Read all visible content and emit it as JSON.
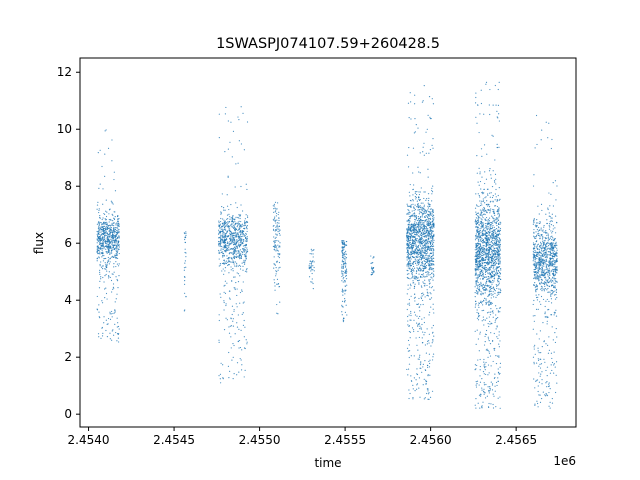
{
  "chart_data": {
    "type": "scatter",
    "title": "1SWASPJ074107.59+260428.5",
    "xlabel": "time",
    "ylabel": "flux",
    "x_offset_label": "1e6",
    "xlim": [
      2.45395,
      2.45685
    ],
    "ylim": [
      -0.45,
      12.5
    ],
    "x_ticks": [
      2.454,
      2.4545,
      2.455,
      2.4555,
      2.456,
      2.4565
    ],
    "x_tick_labels": [
      "2.4540",
      "2.4545",
      "2.4550",
      "2.4555",
      "2.4560",
      "2.4565"
    ],
    "y_ticks": [
      0,
      2,
      4,
      6,
      8,
      10,
      12
    ],
    "y_tick_labels": [
      "0",
      "2",
      "4",
      "6",
      "8",
      "10",
      "12"
    ],
    "grid": false,
    "marker_color": "#1f77b4",
    "series": [
      {
        "clusters": [
          {
            "x": [
              2.45405,
              2.45418
            ],
            "center": 6.2,
            "spread": 0.45,
            "low": 2.5,
            "high": 10.0,
            "n": 700
          },
          {
            "x": [
              2.45456,
              2.45457
            ],
            "center": 5.5,
            "spread": 0.7,
            "low": 3.4,
            "high": 6.4,
            "n": 30
          },
          {
            "x": [
              2.45476,
              2.45493
            ],
            "center": 6.1,
            "spread": 0.5,
            "low": 1.1,
            "high": 10.8,
            "n": 800
          },
          {
            "x": [
              2.45508,
              2.45512
            ],
            "center": 6.2,
            "spread": 0.8,
            "low": 3.5,
            "high": 7.5,
            "n": 120
          },
          {
            "x": [
              2.45529,
              2.45532
            ],
            "center": 5.2,
            "spread": 0.4,
            "low": 4.4,
            "high": 5.8,
            "n": 40
          },
          {
            "x": [
              2.45548,
              2.45551
            ],
            "center": 5.3,
            "spread": 0.7,
            "low": 2.9,
            "high": 6.1,
            "n": 140
          },
          {
            "x": [
              2.45565,
              2.45567
            ],
            "center": 5.2,
            "spread": 0.3,
            "low": 4.7,
            "high": 5.6,
            "n": 25
          },
          {
            "x": [
              2.45586,
              2.45602
            ],
            "center": 6.1,
            "spread": 0.75,
            "low": 0.5,
            "high": 11.6,
            "n": 1400
          },
          {
            "x": [
              2.45626,
              2.45641
            ],
            "center": 5.8,
            "spread": 0.9,
            "low": 0.2,
            "high": 11.9,
            "n": 1500
          },
          {
            "x": [
              2.4566,
              2.45674
            ],
            "center": 5.4,
            "spread": 0.7,
            "low": 0.2,
            "high": 10.5,
            "n": 900
          }
        ]
      }
    ]
  }
}
